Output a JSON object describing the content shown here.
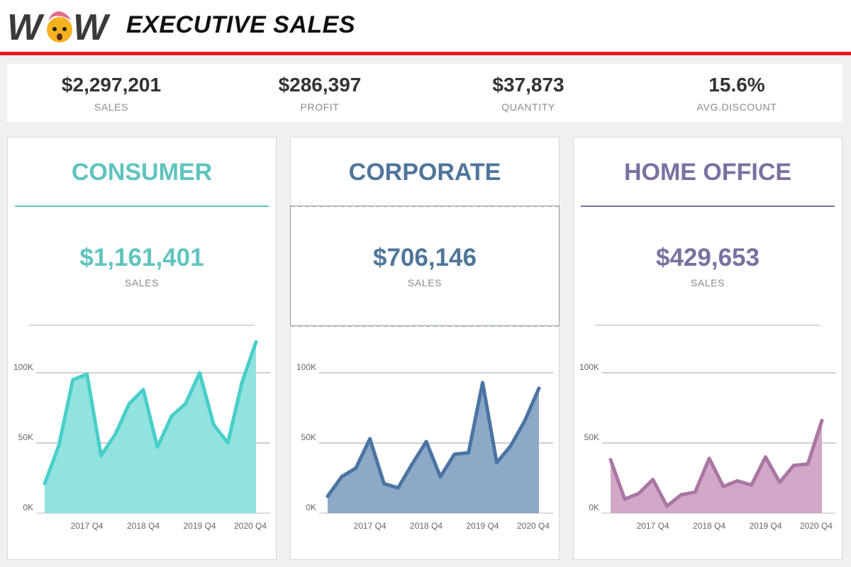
{
  "header": {
    "logo_text": "WOW",
    "title": "EXECUTIVE SALES",
    "accent_color": "#e8161b"
  },
  "kpis": [
    {
      "value": "$2,297,201",
      "label": "SALES"
    },
    {
      "value": "$286,397",
      "label": "PROFIT"
    },
    {
      "value": "$37,873",
      "label": "QUANTITY"
    },
    {
      "value": "15.6%",
      "label": "AVG.DISCOUNT"
    }
  ],
  "segments": [
    {
      "title": "CONSUMER",
      "sales": "$1,161,401",
      "sales_label": "SALES",
      "color": "#5fc4bf",
      "line_color": "#48cfc9",
      "fill_color": "#92e3df",
      "selected": false
    },
    {
      "title": "CORPORATE",
      "sales": "$706,146",
      "sales_label": "SALES",
      "color": "#4f769a",
      "line_color": "#4a74a3",
      "fill_color": "#8ea9c7",
      "selected": true
    },
    {
      "title": "HOME OFFICE",
      "sales": "$429,653",
      "sales_label": "SALES",
      "color": "#7c70a0",
      "line_color": "#aa76a3",
      "fill_color": "#d1a8c8",
      "selected": false
    }
  ],
  "chart_data": [
    {
      "type": "area",
      "title": "CONSUMER",
      "x": [
        "2017 Q1",
        "2017 Q2",
        "2017 Q3",
        "2017 Q4",
        "2018 Q1",
        "2018 Q2",
        "2018 Q3",
        "2018 Q4",
        "2019 Q1",
        "2019 Q2",
        "2019 Q3",
        "2019 Q4",
        "2020 Q1",
        "2020 Q2",
        "2020 Q3",
        "2020 Q4"
      ],
      "series": [
        {
          "values": [
            21000,
            48000,
            95000,
            99000,
            41000,
            56000,
            78000,
            88000,
            47000,
            69000,
            78000,
            100000,
            63000,
            50000,
            93000,
            122000
          ]
        }
      ],
      "x_tick_labels": [
        "2017 Q4",
        "2018 Q4",
        "2019 Q4",
        "2020 Q4"
      ],
      "y_tick_labels": [
        "0K",
        "50K",
        "100K"
      ],
      "ylim": [
        0,
        130000
      ],
      "grid": true
    },
    {
      "type": "area",
      "title": "CORPORATE",
      "x": [
        "2017 Q1",
        "2017 Q2",
        "2017 Q3",
        "2017 Q4",
        "2018 Q1",
        "2018 Q2",
        "2018 Q3",
        "2018 Q4",
        "2019 Q1",
        "2019 Q2",
        "2019 Q3",
        "2019 Q4",
        "2020 Q1",
        "2020 Q2",
        "2020 Q3",
        "2020 Q4"
      ],
      "series": [
        {
          "values": [
            12000,
            26000,
            32000,
            53000,
            21000,
            18000,
            35000,
            51000,
            26000,
            42000,
            43000,
            93000,
            36000,
            48000,
            66000,
            89000
          ]
        }
      ],
      "x_tick_labels": [
        "2017 Q4",
        "2018 Q4",
        "2019 Q4",
        "2020 Q4"
      ],
      "y_tick_labels": [
        "0K",
        "50K",
        "100K"
      ],
      "ylim": [
        0,
        130000
      ],
      "grid": true
    },
    {
      "type": "area",
      "title": "HOME OFFICE",
      "x": [
        "2017 Q1",
        "2017 Q2",
        "2017 Q3",
        "2017 Q4",
        "2018 Q1",
        "2018 Q2",
        "2018 Q3",
        "2018 Q4",
        "2019 Q1",
        "2019 Q2",
        "2019 Q3",
        "2019 Q4",
        "2020 Q1",
        "2020 Q2",
        "2020 Q3",
        "2020 Q4"
      ],
      "series": [
        {
          "values": [
            38000,
            10000,
            14000,
            24000,
            5000,
            13000,
            15000,
            39000,
            19000,
            23000,
            20000,
            40000,
            22000,
            34000,
            35000,
            66000
          ]
        }
      ],
      "x_tick_labels": [
        "2017 Q4",
        "2018 Q4",
        "2019 Q4",
        "2020 Q4"
      ],
      "y_tick_labels": [
        "0K",
        "50K",
        "100K"
      ],
      "ylim": [
        0,
        130000
      ],
      "grid": true
    }
  ]
}
